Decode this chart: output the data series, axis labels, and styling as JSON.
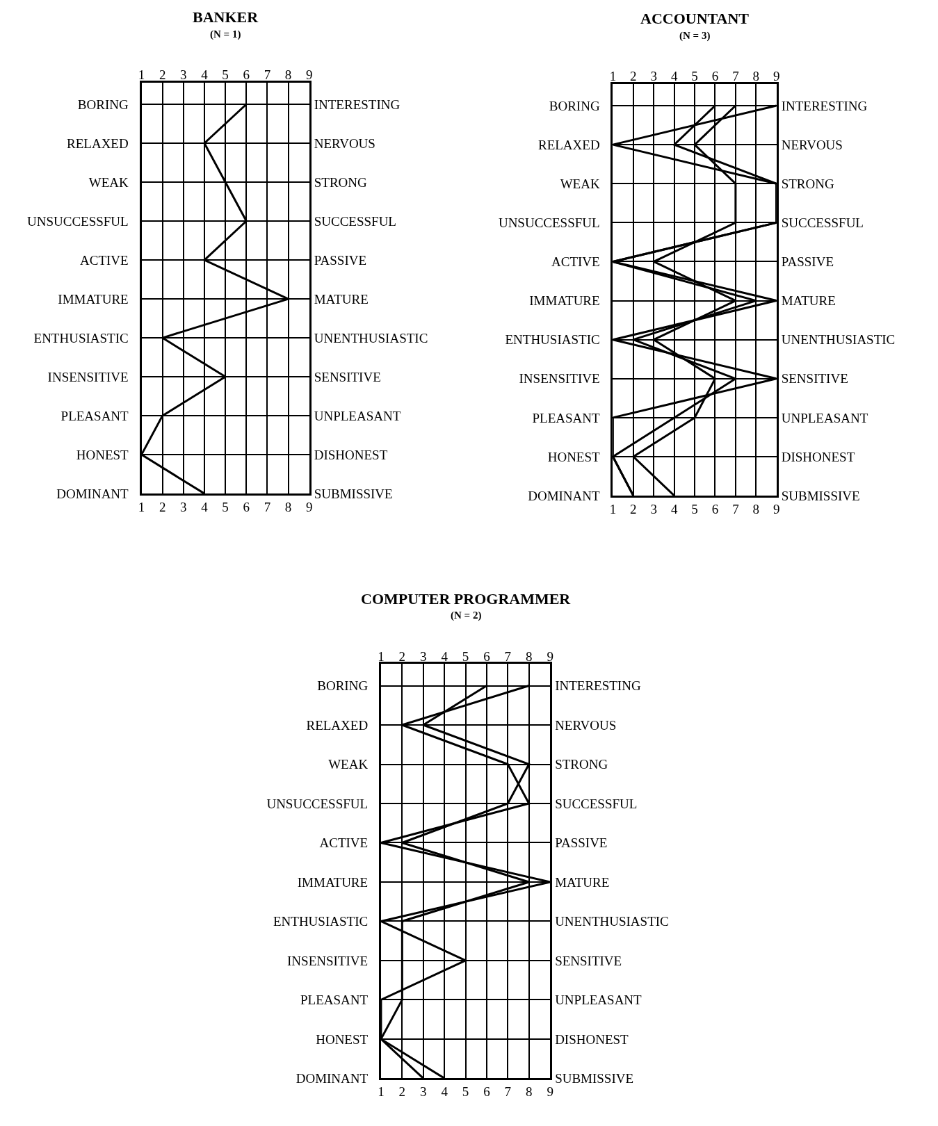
{
  "chart_data": [
    {
      "type": "line",
      "title": "BANKER",
      "subtitle": "(N = 1)",
      "orientation": "horizontal",
      "categories": [
        "BORING",
        "RELAXED",
        "WEAK",
        "UNSUCCESSFUL",
        "ACTIVE",
        "IMMATURE",
        "ENTHUSIASTIC",
        "INSENSITIVE",
        "PLEASANT",
        "HONEST",
        "DOMINANT"
      ],
      "y2_categories": [
        "INTERESTING",
        "NERVOUS",
        "STRONG",
        "SUCCESSFUL",
        "PASSIVE",
        "MATURE",
        "UNENTHUSIASTIC",
        "SENSITIVE",
        "UNPLEASANT",
        "DISHONEST",
        "SUBMISSIVE"
      ],
      "series": [
        {
          "color": "#000000",
          "values": [
            6,
            4,
            5,
            6,
            4,
            8,
            2,
            5,
            2,
            1,
            4
          ]
        }
      ],
      "xlim": [
        1,
        9
      ],
      "xticks": [
        1,
        2,
        3,
        4,
        5,
        6,
        7,
        8,
        9
      ],
      "x2lim": [
        1,
        9
      ],
      "x2ticks": [
        1,
        2,
        3,
        4,
        5,
        6,
        7,
        8,
        9
      ],
      "grid": true,
      "marker": "none",
      "line_style": "solid"
    },
    {
      "type": "line",
      "title": "ACCOUNTANT",
      "subtitle": "(N = 3)",
      "orientation": "horizontal",
      "categories": [
        "BORING",
        "RELAXED",
        "WEAK",
        "UNSUCCESSFUL",
        "ACTIVE",
        "IMMATURE",
        "ENTHUSIASTIC",
        "INSENSITIVE",
        "PLEASANT",
        "HONEST",
        "DOMINANT"
      ],
      "y2_categories": [
        "INTERESTING",
        "NERVOUS",
        "STRONG",
        "SUCCESSFUL",
        "PASSIVE",
        "MATURE",
        "UNENTHUSIASTIC",
        "SENSITIVE",
        "UNPLEASANT",
        "DISHONEST",
        "SUBMISSIVE"
      ],
      "series": [
        {
          "color": "#000000",
          "values": [
            9,
            1,
            9,
            9,
            1,
            9,
            1,
            9,
            1,
            1,
            2
          ]
        },
        {
          "color": "#000000",
          "values": [
            6,
            4,
            9,
            9,
            1,
            8,
            2,
            7,
            4,
            1,
            2
          ]
        },
        {
          "color": "#000000",
          "values": [
            7,
            5,
            7,
            7,
            3,
            7,
            3,
            6,
            5,
            2,
            4
          ]
        }
      ],
      "xlim": [
        1,
        9
      ],
      "xticks": [
        1,
        2,
        3,
        4,
        5,
        6,
        7,
        8,
        9
      ],
      "x2lim": [
        1,
        9
      ],
      "x2ticks": [
        1,
        2,
        3,
        4,
        5,
        6,
        7,
        8,
        9
      ],
      "grid": true,
      "marker": "none",
      "line_style": "solid"
    },
    {
      "type": "line",
      "title": "COMPUTER PROGRAMMER",
      "subtitle": "(N = 2)",
      "orientation": "horizontal",
      "categories": [
        "BORING",
        "RELAXED",
        "WEAK",
        "UNSUCCESSFUL",
        "ACTIVE",
        "IMMATURE",
        "ENTHUSIASTIC",
        "INSENSITIVE",
        "PLEASANT",
        "HONEST",
        "DOMINANT"
      ],
      "y2_categories": [
        "INTERESTING",
        "NERVOUS",
        "STRONG",
        "SUCCESSFUL",
        "PASSIVE",
        "MATURE",
        "UNENTHUSIASTIC",
        "SENSITIVE",
        "UNPLEASANT",
        "DISHONEST",
        "SUBMISSIVE"
      ],
      "series": [
        {
          "color": "#000000",
          "values": [
            8,
            2,
            7,
            8,
            1,
            9,
            1,
            5,
            1,
            1,
            4
          ]
        },
        {
          "color": "#000000",
          "values": [
            6,
            3,
            8,
            7,
            2,
            8,
            2,
            2,
            2,
            1,
            3
          ]
        }
      ],
      "xlim": [
        1,
        9
      ],
      "xticks": [
        1,
        2,
        3,
        4,
        5,
        6,
        7,
        8,
        9
      ],
      "x2lim": [
        1,
        9
      ],
      "x2ticks": [
        1,
        2,
        3,
        4,
        5,
        6,
        7,
        8,
        9
      ],
      "grid": true,
      "marker": "none",
      "line_style": "solid"
    }
  ]
}
